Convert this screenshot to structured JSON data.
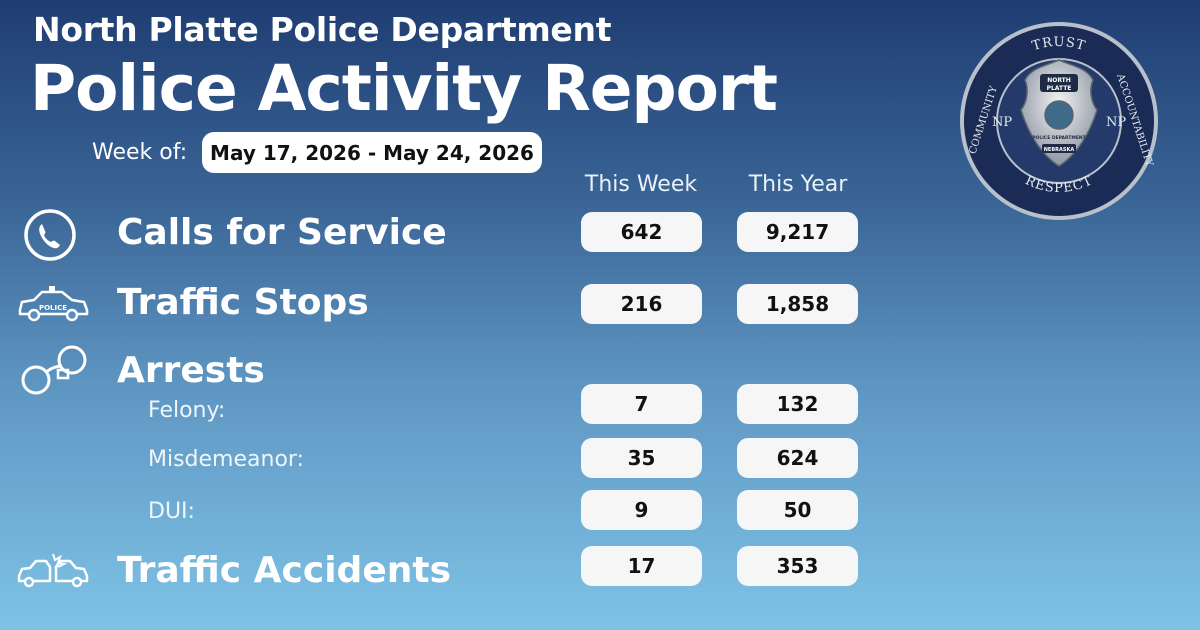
{
  "header": {
    "org": "North Platte Police Department",
    "title": "Police Activity Report"
  },
  "week": {
    "label": "Week of:",
    "range": "May 17, 2026 - May 24, 2026"
  },
  "columns": {
    "this_week": "This Week",
    "this_year": "This Year"
  },
  "rows": {
    "calls": {
      "label": "Calls for Service",
      "icon": "phone-icon",
      "week": "642",
      "year": "9,217"
    },
    "traffic_stops": {
      "label": "Traffic Stops",
      "icon": "police-car-icon",
      "week": "216",
      "year": "1,858"
    },
    "arrests": {
      "label": "Arrests",
      "icon": "handcuffs-icon",
      "felony": {
        "label": "Felony:",
        "week": "7",
        "year": "132"
      },
      "misdemeanor": {
        "label": "Misdemeanor:",
        "week": "35",
        "year": "624"
      },
      "dui": {
        "label": "DUI:",
        "week": "9",
        "year": "50"
      }
    },
    "accidents": {
      "label": "Traffic Accidents",
      "icon": "car-crash-icon",
      "week": "17",
      "year": "353"
    }
  },
  "seal": {
    "top": "TRUST",
    "right": "ACCOUNTABILITY",
    "bottom": "RESPECT",
    "left": "COMMUNITY",
    "monogram": "NP",
    "badge_line1": "NORTH",
    "badge_line2": "PLATTE",
    "badge_dept": "POLICE DEPARTMENT",
    "badge_state": "NEBRASKA"
  },
  "icon_labels": {
    "police_car": "POLICE"
  },
  "colors": {
    "bg_top": "#1f3d72",
    "bg_bottom": "#7fc3e6",
    "pill": "#f6f6f6",
    "seal_ring": "#1a2c55"
  }
}
